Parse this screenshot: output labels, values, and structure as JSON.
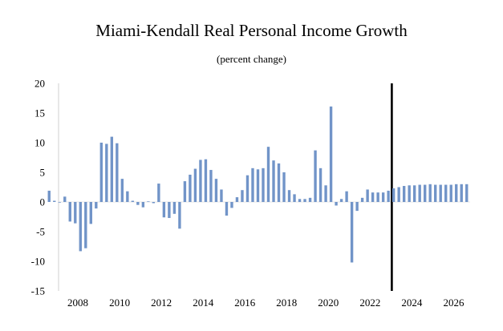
{
  "chart_data": {
    "type": "bar",
    "title": "Miami-Kendall Real Personal Income Growth",
    "subtitle": "(percent change)",
    "xlabel": "",
    "ylabel": "",
    "ylim": [
      -15,
      20
    ],
    "yticks": [
      20,
      15,
      10,
      5,
      0,
      -5,
      -10,
      -15
    ],
    "xticks": [
      "2008",
      "2010",
      "2012",
      "2014",
      "2016",
      "2018",
      "2020",
      "2022",
      "2024",
      "2026"
    ],
    "grid": false,
    "bar_color": "#7194c8",
    "forecast_line_color": "#000000",
    "forecast_start": "2023 Q3",
    "x_start": "2007 Q1",
    "frequency": "quarterly",
    "values": [
      1.9,
      0.2,
      -0.1,
      0.9,
      -3.3,
      -3.6,
      -8.3,
      -7.8,
      -3.7,
      -1.1,
      10.0,
      9.8,
      11.0,
      9.9,
      3.9,
      1.8,
      0.2,
      -0.5,
      -0.9,
      0.1,
      -0.2,
      3.1,
      -2.6,
      -2.7,
      -2.0,
      -4.5,
      3.5,
      4.6,
      5.6,
      7.1,
      7.2,
      5.4,
      3.9,
      2.1,
      -2.3,
      -1.0,
      0.8,
      2.0,
      4.5,
      5.7,
      5.5,
      5.7,
      9.3,
      7.0,
      6.5,
      5.0,
      2.0,
      1.3,
      0.5,
      0.5,
      0.7,
      8.7,
      5.7,
      2.8,
      16.1,
      -0.6,
      0.5,
      1.8,
      -10.2,
      -1.5,
      0.7,
      2.1,
      1.6,
      1.6,
      1.6,
      1.9,
      2.3,
      2.5,
      2.7,
      2.8,
      2.8,
      2.9,
      2.9,
      3.0,
      2.9,
      2.9,
      2.9,
      2.9,
      3.0,
      3.0,
      3.0
    ]
  }
}
